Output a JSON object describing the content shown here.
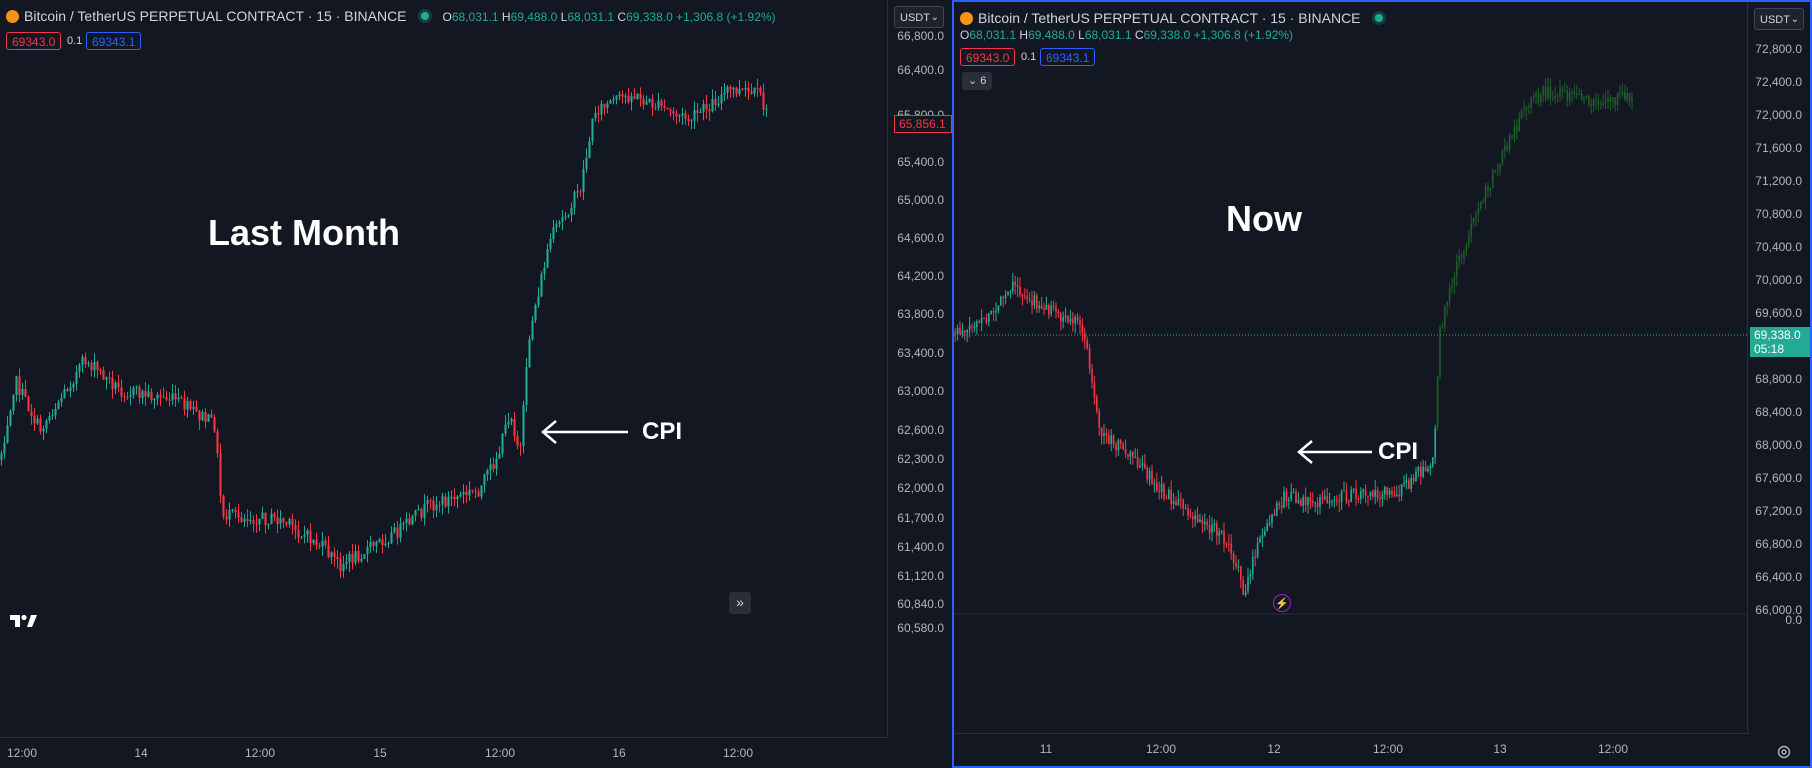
{
  "symbol_title": "Bitcoin / TetherUS PERPETUAL CONTRACT · 15 · BINANCE",
  "ohlc": {
    "open_label": "O",
    "open": "68,031.1",
    "high_label": "H",
    "high": "69,488.0",
    "low_label": "L",
    "low": "68,031.1",
    "close_label": "C",
    "close": "69,338.0",
    "change": "+1,306.8 (+1.92%)"
  },
  "trade": {
    "sell_price": "69343.0",
    "spread": "0.1",
    "buy_price": "69343.1"
  },
  "currency": "USDT",
  "left": {
    "label": "Last Month",
    "cpi_label": "CPI",
    "price_ticks": [
      "66,800.0",
      "66,400.0",
      "65,800.0",
      "65,400.0",
      "65,000.0",
      "64,600.0",
      "64,200.0",
      "63,800.0",
      "63,400.0",
      "63,000.0",
      "62,600.0",
      "62,300.0",
      "62,000.0",
      "61,700.0",
      "61,400.0",
      "61,120.0",
      "60,840.0",
      "60,580.0"
    ],
    "last_price_tag": "65,856.1",
    "time_ticks": [
      "12:00",
      "14",
      "12:00",
      "15",
      "12:00",
      "16",
      "12:00"
    ],
    "scroll_button": "»"
  },
  "right": {
    "label": "Now",
    "cpi_label": "CPI",
    "collapsed_count": "6",
    "price_ticks": [
      "72,800.0",
      "72,400.0",
      "72,000.0",
      "71,600.0",
      "71,200.0",
      "70,800.0",
      "70,400.0",
      "70,000.0",
      "69,600.0",
      "68,800.0",
      "68,400.0",
      "68,000.0",
      "67,600.0",
      "67,200.0",
      "66,800.0",
      "66,400.0",
      "66,000.0",
      "0.0"
    ],
    "last_price_tag": "69,338.0",
    "countdown": "05:18",
    "time_ticks": [
      "11",
      "12:00",
      "12",
      "12:00",
      "13",
      "12:00"
    ]
  },
  "colors": {
    "up": "#22ab94",
    "down": "#f23645",
    "background": "#131722",
    "projection": "#1e5c2a",
    "accent": "#2962ff"
  },
  "icons": {
    "symbol_logo": "bitcoin-logo-icon",
    "market_status": "market-open-dot-icon",
    "event": "lightning-event-icon",
    "settings": "settings-icon",
    "brand": "tradingview-logo-icon"
  }
}
